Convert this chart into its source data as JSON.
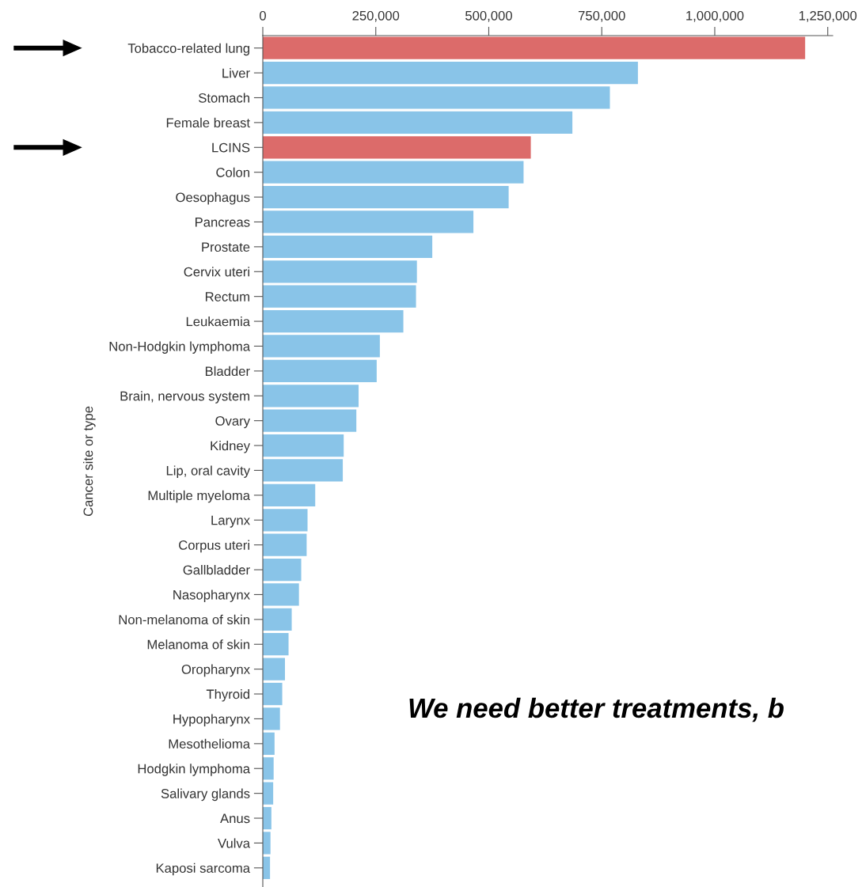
{
  "chart_data": {
    "type": "bar",
    "orientation": "horizontal",
    "ylabel": "Cancer site or type",
    "categories": [
      "Tobacco-related lung",
      "Liver",
      "Stomach",
      "Female breast",
      "LCINS",
      "Colon",
      "Oesophagus",
      "Pancreas",
      "Prostate",
      "Cervix uteri",
      "Rectum",
      "Leukaemia",
      "Non-Hodgkin lymphoma",
      "Bladder",
      "Brain, nervous system",
      "Ovary",
      "Kidney",
      "Lip, oral cavity",
      "Multiple myeloma",
      "Larynx",
      "Corpus uteri",
      "Gallbladder",
      "Nasopharynx",
      "Non-melanoma of skin",
      "Melanoma of skin",
      "Oropharynx",
      "Thyroid",
      "Hypopharynx",
      "Mesothelioma",
      "Hodgkin lymphoma",
      "Salivary glands",
      "Anus",
      "Vulva",
      "Kaposi sarcoma"
    ],
    "values": [
      1200000,
      830000,
      768000,
      685000,
      593000,
      577000,
      544000,
      466000,
      375000,
      341000,
      339000,
      311000,
      259000,
      252000,
      212000,
      207000,
      179000,
      177000,
      116000,
      99000,
      97000,
      85000,
      80000,
      64000,
      57000,
      49000,
      43000,
      38000,
      26000,
      24000,
      23000,
      19000,
      17000,
      16000
    ],
    "colors": [
      "#dc6b6a",
      "#89c4e8",
      "#89c4e8",
      "#89c4e8",
      "#dc6b6a",
      "#89c4e8",
      "#89c4e8",
      "#89c4e8",
      "#89c4e8",
      "#89c4e8",
      "#89c4e8",
      "#89c4e8",
      "#89c4e8",
      "#89c4e8",
      "#89c4e8",
      "#89c4e8",
      "#89c4e8",
      "#89c4e8",
      "#89c4e8",
      "#89c4e8",
      "#89c4e8",
      "#89c4e8",
      "#89c4e8",
      "#89c4e8",
      "#89c4e8",
      "#89c4e8",
      "#89c4e8",
      "#89c4e8",
      "#89c4e8",
      "#89c4e8",
      "#89c4e8",
      "#89c4e8",
      "#89c4e8",
      "#89c4e8"
    ],
    "xlim": [
      0,
      1261000
    ],
    "xticks": [
      {
        "value": 0,
        "label": "0"
      },
      {
        "value": 250000,
        "label": "250,000"
      },
      {
        "value": 500000,
        "label": "500,000"
      },
      {
        "value": 750000,
        "label": "750,000"
      },
      {
        "value": 1000000,
        "label": "1,000,000"
      },
      {
        "value": 1250000,
        "label": "1,250,000"
      }
    ],
    "grid": false,
    "legend": false,
    "annotations": [
      "We need better treatments, b"
    ]
  }
}
